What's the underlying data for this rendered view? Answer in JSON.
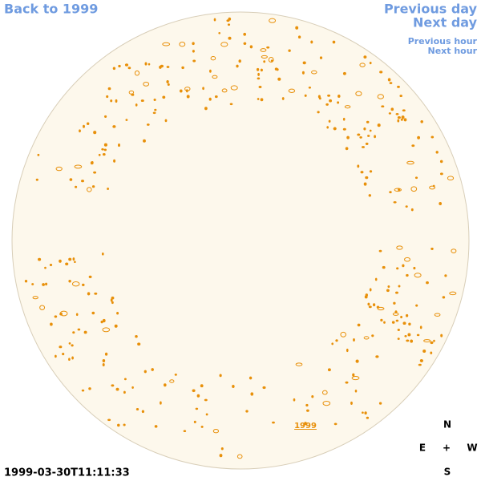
{
  "links": {
    "back": "Back to 1999",
    "previous_day": "Previous day",
    "next_day": "Next day",
    "previous_hour": "Previous hour",
    "next_hour": "Next hour"
  },
  "timestamp": "1999-03-30T11:11:33",
  "marker_label": "1999",
  "compass": {
    "north": "N",
    "east": "E",
    "center": "+",
    "west": "W",
    "south": "S"
  }
}
